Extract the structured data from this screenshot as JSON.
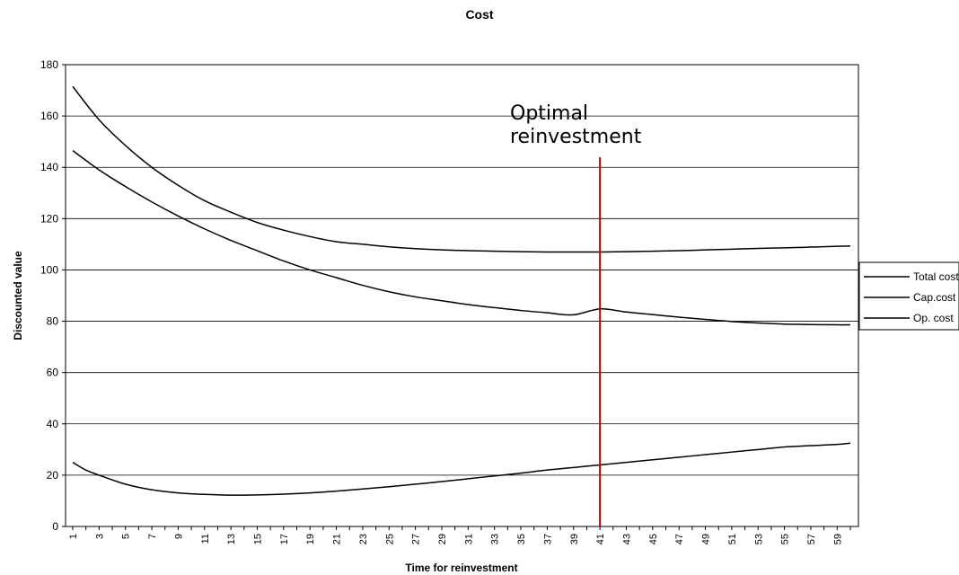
{
  "chart_data": {
    "type": "line",
    "title": "Cost",
    "xlabel": "Time for reinvestment",
    "ylabel": "Discounted value",
    "ylim": [
      0,
      180
    ],
    "yticks": [
      0,
      20,
      40,
      60,
      80,
      100,
      120,
      140,
      160,
      180
    ],
    "xlim": [
      1,
      60
    ],
    "xtick_labels": [
      "1",
      "3",
      "5",
      "7",
      "9",
      "11",
      "13",
      "15",
      "17",
      "19",
      "21",
      "23",
      "25",
      "27",
      "29",
      "31",
      "33",
      "35",
      "37",
      "39",
      "41",
      "43",
      "45",
      "47",
      "49",
      "51",
      "53",
      "55",
      "57",
      "59"
    ],
    "grid": "horizontal",
    "legend_position": "right",
    "line_color": "#000000",
    "series": [
      {
        "name": "Total cost",
        "x": [
          1,
          3,
          5,
          7,
          9,
          11,
          13,
          15,
          17,
          19,
          21,
          23,
          25,
          27,
          29,
          31,
          33,
          35,
          37,
          39,
          41,
          43,
          45,
          47,
          49,
          51,
          53,
          55,
          57,
          59,
          60
        ],
        "values": [
          171.5,
          158.5,
          148.5,
          140,
          133,
          127,
          122.5,
          118.5,
          115.5,
          113,
          111,
          110,
          109,
          108.3,
          107.8,
          107.5,
          107.3,
          107.1,
          107,
          107,
          107,
          107.1,
          107.3,
          107.5,
          107.8,
          108.1,
          108.4,
          108.6,
          108.9,
          109.2,
          109.3
        ]
      },
      {
        "name": "Cap.cost",
        "x": [
          1,
          3,
          5,
          7,
          9,
          11,
          13,
          15,
          17,
          19,
          21,
          23,
          25,
          27,
          29,
          31,
          33,
          35,
          37,
          39,
          41,
          43,
          45,
          47,
          49,
          51,
          53,
          55,
          57,
          59,
          60
        ],
        "values": [
          146.5,
          139,
          132.5,
          126.5,
          121,
          116,
          111.5,
          107.5,
          103.5,
          100,
          97,
          94,
          91.5,
          89.5,
          88,
          86.5,
          85.3,
          84.2,
          83.3,
          82.5,
          84.8,
          83.6,
          82.6,
          81.6,
          80.7,
          79.9,
          79.3,
          78.9,
          78.7,
          78.6,
          78.6
        ]
      },
      {
        "name": "Op. cost",
        "x": [
          1,
          2,
          3,
          5,
          7,
          9,
          11,
          13,
          15,
          17,
          19,
          21,
          23,
          25,
          27,
          29,
          31,
          33,
          35,
          37,
          39,
          41,
          43,
          45,
          47,
          49,
          51,
          53,
          55,
          57,
          59,
          60
        ],
        "values": [
          25,
          22,
          20,
          16.5,
          14.3,
          13.1,
          12.5,
          12.2,
          12.3,
          12.6,
          13.1,
          13.8,
          14.6,
          15.5,
          16.5,
          17.5,
          18.6,
          19.7,
          20.8,
          22,
          23,
          24,
          25,
          26,
          27,
          28,
          29,
          30,
          31,
          31.5,
          32,
          32.5
        ]
      }
    ],
    "annotations": [
      {
        "text_lines": [
          "Optimal",
          "reinvestment"
        ],
        "x": 41,
        "color": "#cc0000"
      }
    ]
  }
}
